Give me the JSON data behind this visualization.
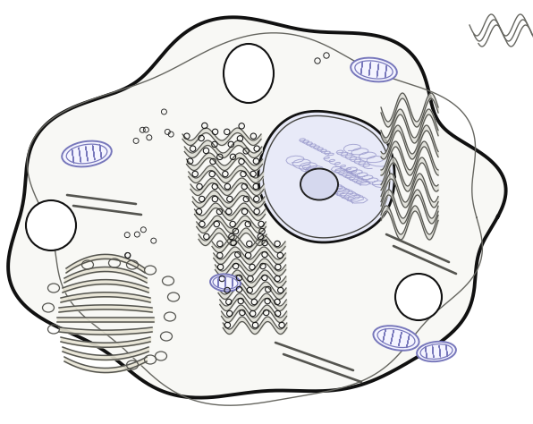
{
  "bg_color": "#ffffff",
  "cell_fill": "#f8f8f5",
  "membrane_outer_color": "#111111",
  "membrane_inner_color": "#666660",
  "nucleus_fill": "#e8eaf8",
  "nucleus_border": "#111111",
  "nucleolus_fill": "#c8cae0",
  "er_color": "#666660",
  "er_fill": "#e0ddd8",
  "ribosome_color": "#111111",
  "mito_color": "#7777bb",
  "mito_fill": "#f0f0ff",
  "golgi_color": "#555550",
  "golgi_fill": "#e8e5d5",
  "vacuole_color": "#111111",
  "filament_color": "#555550",
  "chromatin_color": "#9999cc",
  "figsize": [
    5.96,
    4.74
  ],
  "dpi": 100
}
